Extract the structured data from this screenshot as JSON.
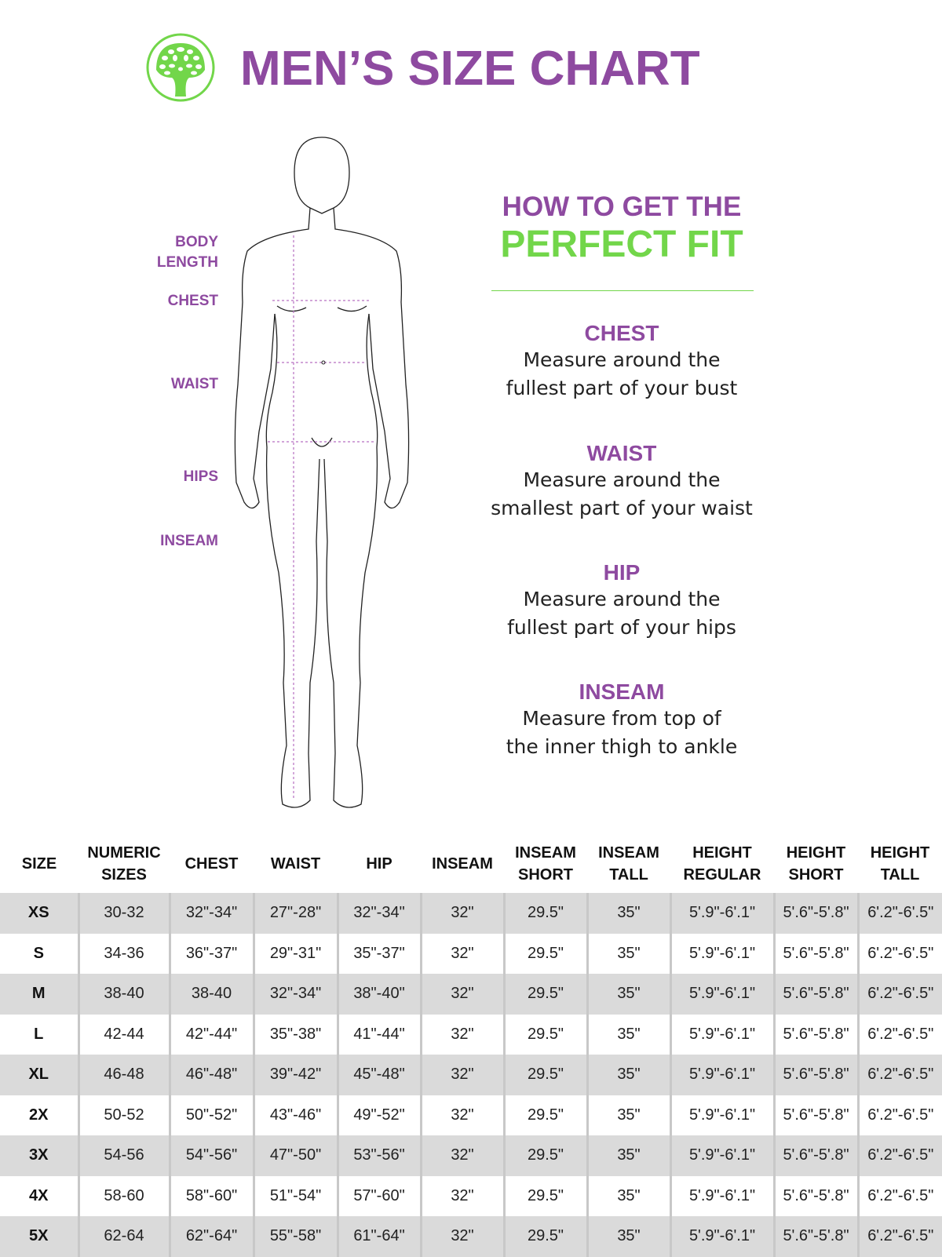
{
  "header": {
    "title": "MEN’S SIZE CHART",
    "logo": "tree-logo-icon"
  },
  "colors": {
    "purple": "#8e4aa0",
    "green": "#72d64a",
    "row_alt": "#dadada"
  },
  "figure_labels": [
    "BODY",
    "LENGTH",
    "CHEST",
    "WAIST",
    "HIPS",
    "INSEAM"
  ],
  "guide": {
    "line1": "HOW TO GET THE",
    "line2": "PERFECT FIT",
    "sections": [
      {
        "title": "CHEST",
        "l1": "Measure around the",
        "l2": "fullest part of your bust"
      },
      {
        "title": "WAIST",
        "l1": "Measure around the",
        "l2": "smallest part of your waist"
      },
      {
        "title": "HIP",
        "l1": "Measure around the",
        "l2": "fullest part of your hips"
      },
      {
        "title": "INSEAM",
        "l1": "Measure from top of",
        "l2": "the inner thigh to ankle"
      }
    ]
  },
  "table": {
    "headers": [
      [
        "SIZE",
        ""
      ],
      [
        "NUMERIC",
        "SIZES"
      ],
      [
        "CHEST",
        ""
      ],
      [
        "WAIST",
        ""
      ],
      [
        "HIP",
        ""
      ],
      [
        "INSEAM",
        ""
      ],
      [
        "INSEAM",
        "SHORT"
      ],
      [
        "INSEAM",
        "TALL"
      ],
      [
        "HEIGHT",
        "REGULAR"
      ],
      [
        "HEIGHT",
        "SHORT"
      ],
      [
        "HEIGHT",
        "TALL"
      ]
    ],
    "rows": [
      [
        "XS",
        "30-32",
        "32\"-34\"",
        "27\"-28\"",
        "32\"-34\"",
        "32\"",
        "29.5\"",
        "35\"",
        "5'.9\"-6'.1\"",
        "5'.6\"-5'.8\"",
        "6'.2\"-6'.5\""
      ],
      [
        "S",
        "34-36",
        "36\"-37\"",
        "29\"-31\"",
        "35\"-37\"",
        "32\"",
        "29.5\"",
        "35\"",
        "5'.9\"-6'.1\"",
        "5'.6\"-5'.8\"",
        "6'.2\"-6'.5\""
      ],
      [
        "M",
        "38-40",
        "38-40",
        "32\"-34\"",
        "38\"-40\"",
        "32\"",
        "29.5\"",
        "35\"",
        "5'.9\"-6'.1\"",
        "5'.6\"-5'.8\"",
        "6'.2\"-6'.5\""
      ],
      [
        "L",
        "42-44",
        "42\"-44\"",
        "35\"-38\"",
        "41\"-44\"",
        "32\"",
        "29.5\"",
        "35\"",
        "5'.9\"-6'.1\"",
        "5'.6\"-5'.8\"",
        "6'.2\"-6'.5\""
      ],
      [
        "XL",
        "46-48",
        "46\"-48\"",
        "39\"-42\"",
        "45\"-48\"",
        "32\"",
        "29.5\"",
        "35\"",
        "5'.9\"-6'.1\"",
        "5'.6\"-5'.8\"",
        "6'.2\"-6'.5\""
      ],
      [
        "2X",
        "50-52",
        "50\"-52\"",
        "43\"-46\"",
        "49\"-52\"",
        "32\"",
        "29.5\"",
        "35\"",
        "5'.9\"-6'.1\"",
        "5'.6\"-5'.8\"",
        "6'.2\"-6'.5\""
      ],
      [
        "3X",
        "54-56",
        "54\"-56\"",
        "47\"-50\"",
        "53\"-56\"",
        "32\"",
        "29.5\"",
        "35\"",
        "5'.9\"-6'.1\"",
        "5'.6\"-5'.8\"",
        "6'.2\"-6'.5\""
      ],
      [
        "4X",
        "58-60",
        "58\"-60\"",
        "51\"-54\"",
        "57\"-60\"",
        "32\"",
        "29.5\"",
        "35\"",
        "5'.9\"-6'.1\"",
        "5'.6\"-5'.8\"",
        "6'.2\"-6'.5\""
      ],
      [
        "5X",
        "62-64",
        "62\"-64\"",
        "55\"-58\"",
        "61\"-64\"",
        "32\"",
        "29.5\"",
        "35\"",
        "5'.9\"-6'.1\"",
        "5'.6\"-5'.8\"",
        "6'.2\"-6'.5\""
      ]
    ]
  }
}
